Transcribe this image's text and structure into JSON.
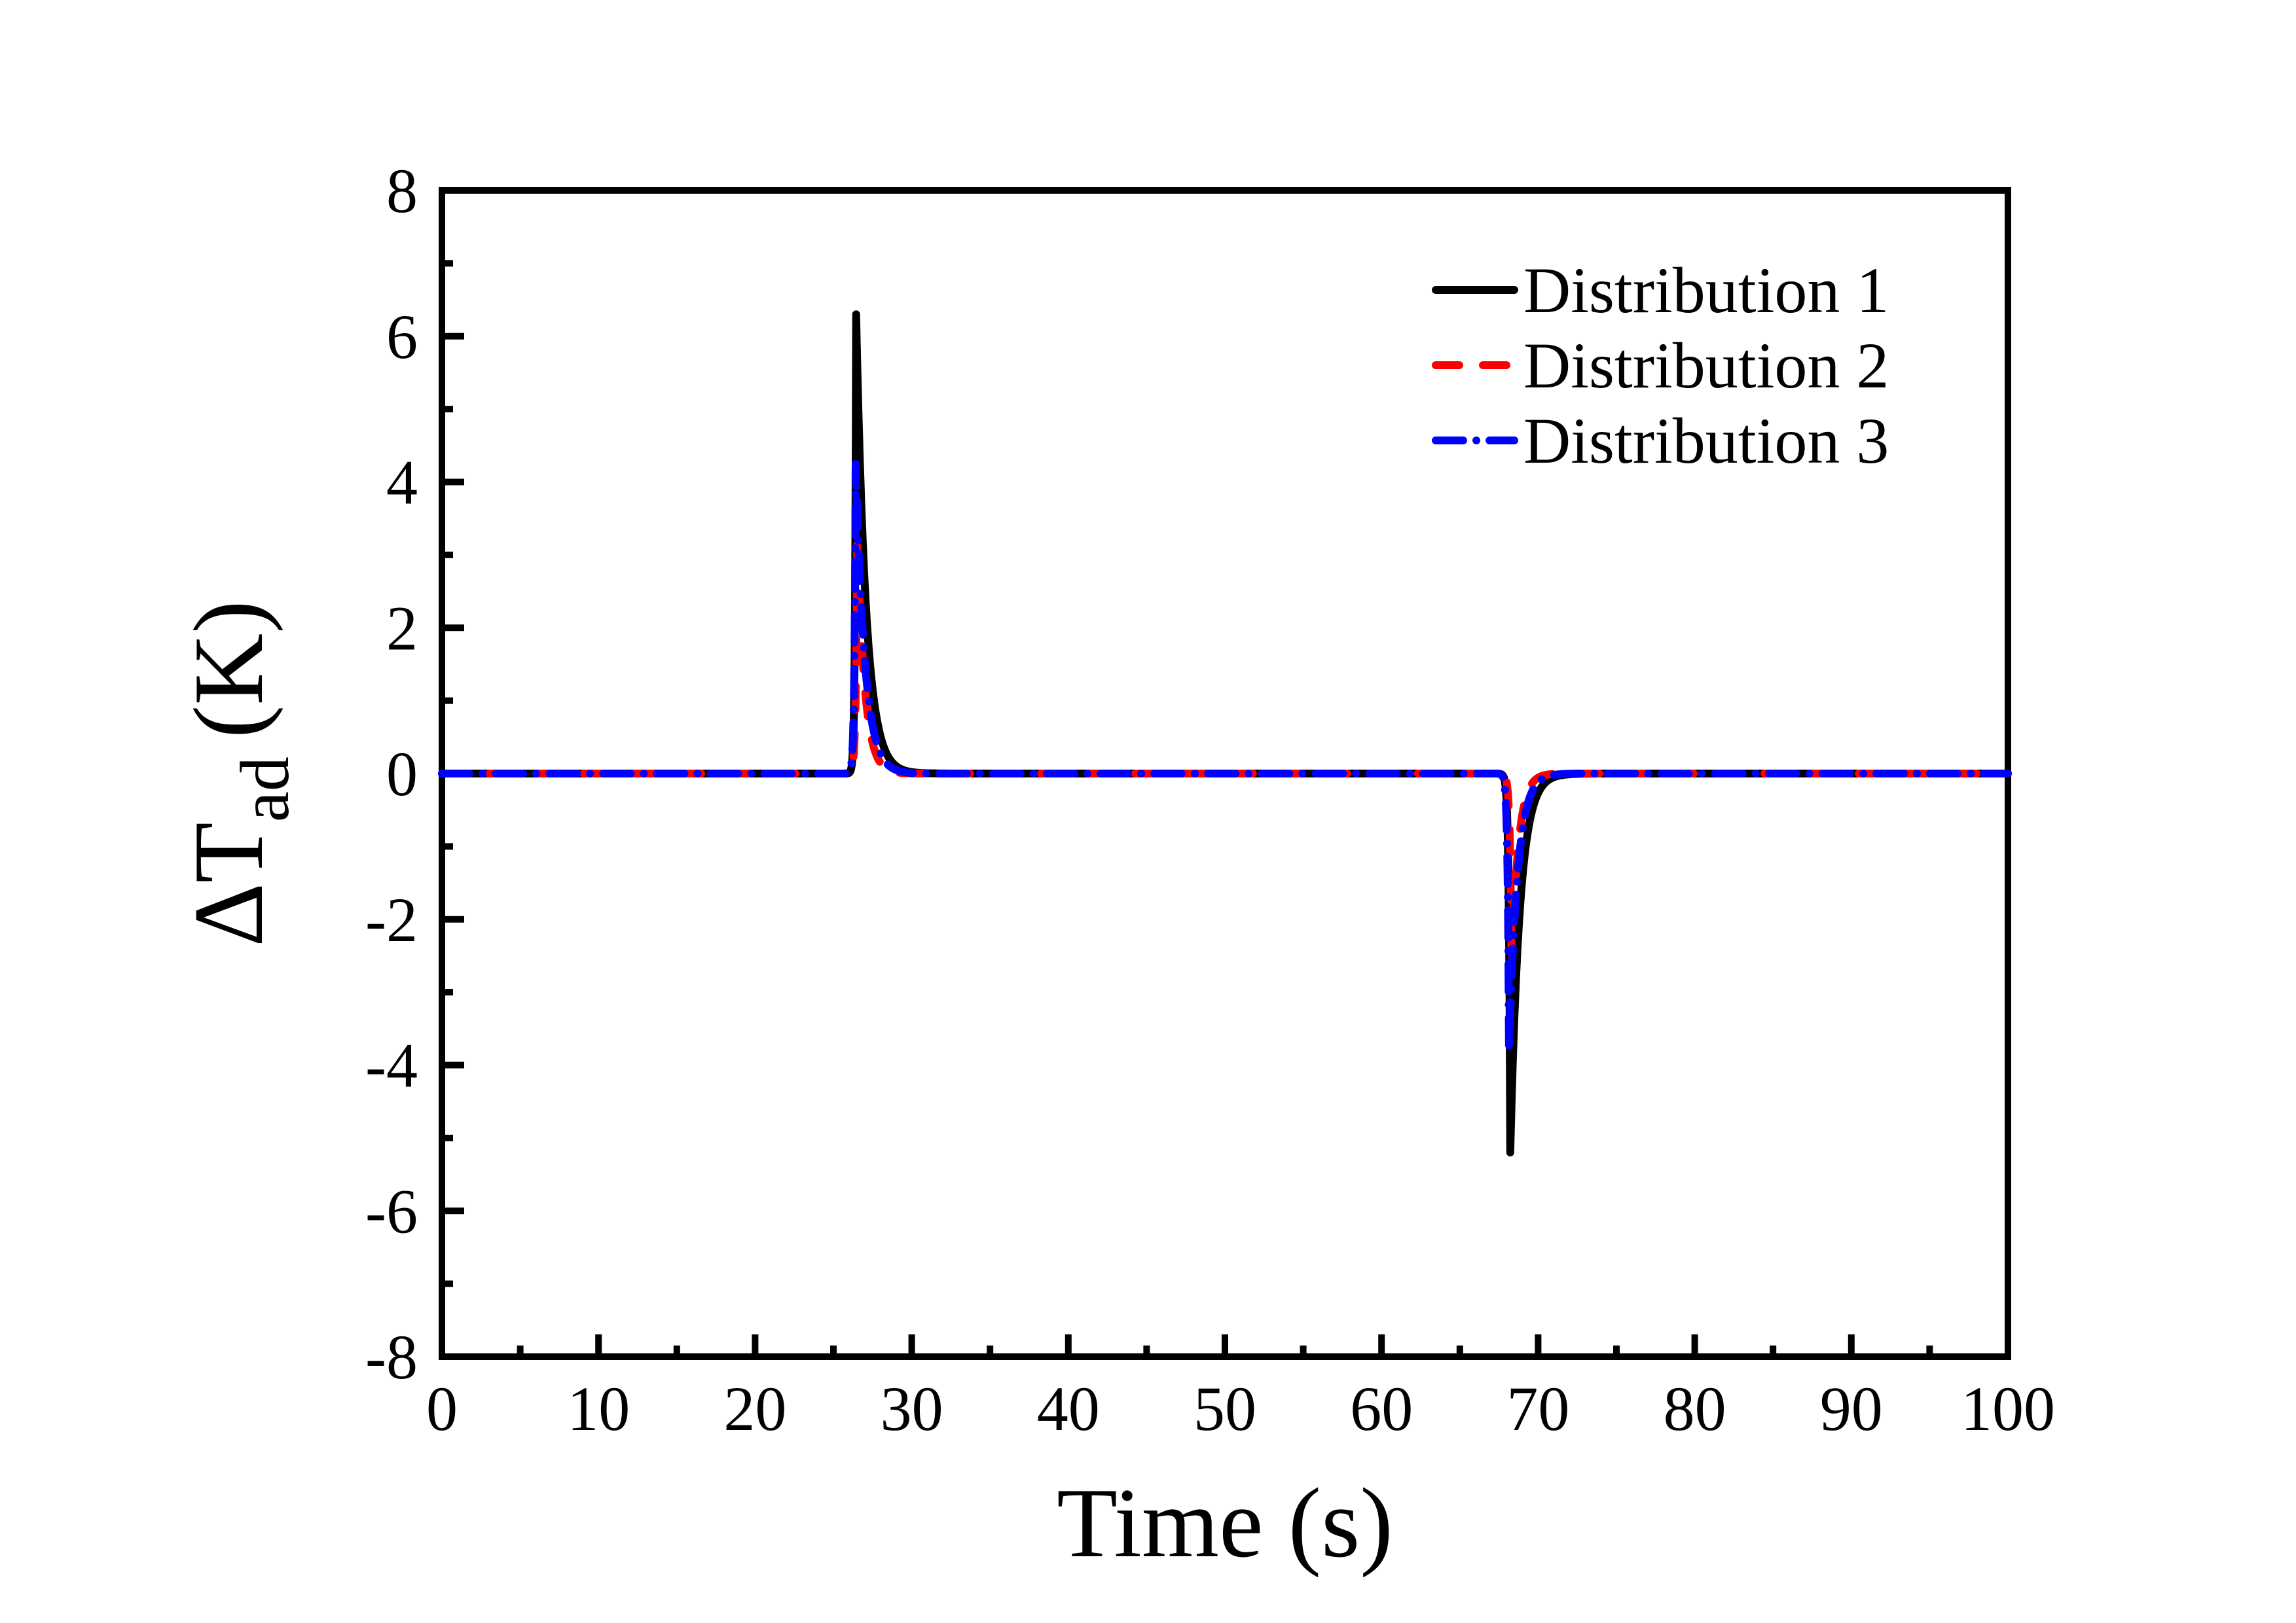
{
  "figure": {
    "background_color": "#ffffff",
    "frame_color": "#000000"
  },
  "chart_data": {
    "type": "line",
    "title": "",
    "xlabel": "Time (s)",
    "ylabel": "ΔT_ad (K)",
    "ylabel_main": "ΔT",
    "ylabel_sub": "ad",
    "ylabel_unit": "(K)",
    "xlim": [
      0,
      100
    ],
    "ylim": [
      -8,
      8
    ],
    "x_major_ticks": [
      0,
      10,
      20,
      30,
      40,
      50,
      60,
      70,
      80,
      90,
      100
    ],
    "x_tick_labels": [
      "0",
      "10",
      "20",
      "30",
      "40",
      "50",
      "60",
      "70",
      "80",
      "90",
      "100"
    ],
    "x_minor_ticks": [
      5,
      15,
      25,
      35,
      45,
      55,
      65,
      75,
      85,
      95
    ],
    "y_major_ticks": [
      -8,
      -6,
      -4,
      -2,
      0,
      2,
      4,
      6,
      8
    ],
    "y_tick_labels": [
      "-8",
      "-6",
      "-4",
      "-2",
      "0",
      "2",
      "4",
      "6",
      "8"
    ],
    "y_minor_ticks": [
      -7,
      -5,
      -3,
      -1,
      1,
      3,
      5,
      7
    ],
    "grid": false,
    "legend_position": "top-right",
    "baseline_value": 0,
    "series": [
      {
        "name": "Distribution 1",
        "color": "#000000",
        "style": "solid",
        "peak_time": 26.45,
        "peak_value": 6.3,
        "peak_rise_tau": 0.07,
        "peak_fall_tau": 0.62,
        "dip_time": 68.22,
        "dip_value": -5.2,
        "dip_rise_tau": 0.09,
        "dip_fall_tau": 0.6
      },
      {
        "name": "Distribution 2",
        "color": "#ff0000",
        "style": "dashed",
        "peak_time": 26.52,
        "peak_value": 3.25,
        "peak_rise_tau": 0.09,
        "peak_fall_tau": 0.48,
        "dip_time": 68.3,
        "dip_value": -2.7,
        "dip_rise_tau": 0.1,
        "dip_fall_tau": 0.44
      },
      {
        "name": "Distribution 3",
        "color": "#0000ff",
        "style": "dash-dot",
        "peak_time": 26.42,
        "peak_value": 4.25,
        "peak_rise_tau": 0.08,
        "peak_fall_tau": 0.58,
        "dip_time": 68.14,
        "dip_value": -3.8,
        "dip_rise_tau": 0.09,
        "dip_fall_tau": 0.54
      }
    ]
  }
}
